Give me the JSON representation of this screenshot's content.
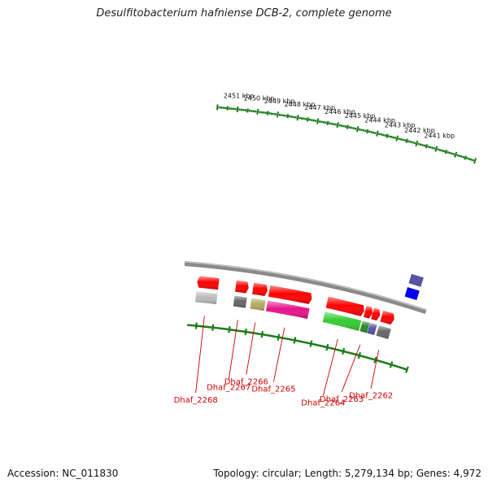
{
  "title": "Desulfitobacterium hafniense DCB-2, complete genome",
  "footer": {
    "accession": "Accession: NC_011830",
    "summary": "Topology: circular; Length: 5,279,134 bp; Genes: 4,972"
  },
  "scale": {
    "unit": "kbp",
    "ticks": [
      {
        "kbp": 2441,
        "label": "2441 kbp"
      },
      {
        "kbp": 2442,
        "label": "2442 kbp"
      },
      {
        "kbp": 2443,
        "label": "2443 kbp"
      },
      {
        "kbp": 2444,
        "label": "2444 kbp"
      },
      {
        "kbp": 2445,
        "label": "2445 kbp"
      },
      {
        "kbp": 2446,
        "label": "2446 kbp"
      },
      {
        "kbp": 2447,
        "label": "2447 kbp"
      },
      {
        "kbp": 2448,
        "label": "2448 kbp"
      },
      {
        "kbp": 2449,
        "label": "2449 kbp"
      },
      {
        "kbp": 2450,
        "label": "2450 kbp"
      },
      {
        "kbp": 2451,
        "label": "2451 kbp"
      }
    ],
    "tick_color": "#1a7a1a"
  },
  "colors": {
    "backbone": "#888888",
    "gene": "#ff0000",
    "label": "#cc0000"
  },
  "genes": [
    {
      "label": "Dhaf_2268",
      "start_kbp": 2450.95,
      "end_kbp": 2452.2,
      "strand": "+",
      "cds_color": "#bbbbbb",
      "labeled": true
    },
    {
      "label": "Dhaf_2267",
      "start_kbp": 2449.2,
      "end_kbp": 2449.95,
      "strand": "-",
      "cds_color": "#666666",
      "labeled": true
    },
    {
      "label": "Dhaf_2266",
      "start_kbp": 2448.1,
      "end_kbp": 2448.95,
      "strand": "-",
      "cds_color": "#b5aa62",
      "labeled": true
    },
    {
      "label": "Dhaf_2265",
      "start_kbp": 2445.5,
      "end_kbp": 2448.0,
      "strand": "-",
      "cds_color": "#e8128a",
      "labeled": true
    },
    {
      "label": "Dhaf_2264",
      "start_kbp": 2442.4,
      "end_kbp": 2444.6,
      "strand": "-",
      "cds_color": "#33cc33",
      "labeled": true
    },
    {
      "label": "Dhaf_2263",
      "start_kbp": 2441.9,
      "end_kbp": 2442.35,
      "strand": "-",
      "cds_color": "#2a8a2a",
      "labeled": true
    },
    {
      "label": "",
      "start_kbp": 2441.45,
      "end_kbp": 2441.9,
      "strand": "-",
      "cds_color": "#5555a0",
      "labeled": false
    },
    {
      "label": "Dhaf_2262",
      "start_kbp": 2440.6,
      "end_kbp": 2441.35,
      "strand": "-",
      "cds_color": "#666666",
      "labeled": true
    },
    {
      "label": "",
      "start_kbp": 2439.7,
      "end_kbp": 2440.4,
      "strand": "+",
      "cds_color": "#5555a0",
      "labeled": false
    },
    {
      "label": "",
      "start_kbp": 2439.7,
      "end_kbp": 2440.4,
      "strand": "+",
      "cds_color": "#0000ee",
      "labeled": false
    }
  ]
}
